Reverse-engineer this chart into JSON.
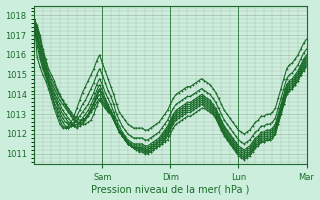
{
  "title": "",
  "xlabel": "Pression niveau de la mer( hPa )",
  "background_color": "#cceedd",
  "grid_color": "#aabbaa",
  "line_color": "#1a6b2a",
  "ylim": [
    1010.5,
    1018.5
  ],
  "yticks": [
    1011,
    1012,
    1013,
    1014,
    1015,
    1016,
    1017,
    1018
  ],
  "day_labels": [
    "Sam",
    "Dim",
    "Lun",
    "Mar"
  ],
  "day_positions": [
    0.25,
    0.5,
    0.75,
    1.0
  ],
  "n_points": 97,
  "series": [
    [
      1017.8,
      1017.5,
      1017.0,
      1016.3,
      1015.8,
      1015.3,
      1015.0,
      1014.7,
      1014.3,
      1014.0,
      1013.7,
      1013.4,
      1013.2,
      1013.0,
      1012.8,
      1012.6,
      1012.5,
      1012.5,
      1012.5,
      1012.6,
      1012.7,
      1013.0,
      1013.4,
      1013.7,
      1013.5,
      1013.3,
      1013.1,
      1013.0,
      1012.8,
      1012.5,
      1012.2,
      1012.0,
      1011.8,
      1011.6,
      1011.4,
      1011.3,
      1011.3,
      1011.2,
      1011.2,
      1011.1,
      1011.1,
      1011.1,
      1011.2,
      1011.3,
      1011.4,
      1011.5,
      1011.6,
      1011.7,
      1012.0,
      1012.3,
      1012.5,
      1012.6,
      1012.7,
      1012.8,
      1012.9,
      1012.9,
      1013.0,
      1013.1,
      1013.2,
      1013.3,
      1013.3,
      1013.2,
      1013.1,
      1013.0,
      1012.8,
      1012.5,
      1012.2,
      1012.0,
      1011.8,
      1011.6,
      1011.4,
      1011.2,
      1011.0,
      1010.9,
      1010.8,
      1010.9,
      1011.0,
      1011.2,
      1011.4,
      1011.5,
      1011.6,
      1011.6,
      1011.7,
      1011.7,
      1011.8,
      1012.0,
      1012.5,
      1013.0,
      1013.5,
      1014.0,
      1014.2,
      1014.3,
      1014.5,
      1014.7,
      1015.0,
      1015.3,
      1015.5
    ],
    [
      1017.8,
      1017.4,
      1016.9,
      1016.2,
      1015.6,
      1015.1,
      1014.8,
      1014.5,
      1014.2,
      1013.9,
      1013.7,
      1013.5,
      1013.3,
      1013.1,
      1012.9,
      1012.8,
      1012.7,
      1012.7,
      1012.8,
      1012.9,
      1013.1,
      1013.3,
      1013.6,
      1013.8,
      1013.6,
      1013.4,
      1013.2,
      1013.0,
      1012.7,
      1012.4,
      1012.1,
      1011.9,
      1011.7,
      1011.5,
      1011.4,
      1011.3,
      1011.2,
      1011.1,
      1011.1,
      1011.0,
      1011.0,
      1011.1,
      1011.2,
      1011.3,
      1011.4,
      1011.5,
      1011.7,
      1011.9,
      1012.2,
      1012.5,
      1012.7,
      1012.8,
      1012.9,
      1013.0,
      1013.1,
      1013.1,
      1013.2,
      1013.3,
      1013.4,
      1013.5,
      1013.4,
      1013.3,
      1013.2,
      1013.0,
      1012.8,
      1012.5,
      1012.2,
      1011.9,
      1011.7,
      1011.5,
      1011.3,
      1011.1,
      1010.9,
      1010.8,
      1010.7,
      1010.8,
      1010.9,
      1011.1,
      1011.3,
      1011.4,
      1011.6,
      1011.6,
      1011.7,
      1011.7,
      1011.8,
      1012.0,
      1012.5,
      1013.0,
      1013.5,
      1014.0,
      1014.2,
      1014.3,
      1014.5,
      1014.7,
      1015.0,
      1015.2,
      1015.4
    ],
    [
      1017.8,
      1017.3,
      1016.8,
      1016.1,
      1015.4,
      1015.0,
      1014.6,
      1014.3,
      1014.0,
      1013.7,
      1013.5,
      1013.3,
      1013.1,
      1012.9,
      1012.7,
      1012.6,
      1012.6,
      1012.7,
      1012.8,
      1013.0,
      1013.2,
      1013.5,
      1013.8,
      1014.0,
      1013.7,
      1013.5,
      1013.2,
      1013.0,
      1012.7,
      1012.4,
      1012.1,
      1011.9,
      1011.7,
      1011.5,
      1011.4,
      1011.3,
      1011.3,
      1011.2,
      1011.2,
      1011.1,
      1011.1,
      1011.2,
      1011.3,
      1011.4,
      1011.5,
      1011.6,
      1011.8,
      1012.0,
      1012.3,
      1012.6,
      1012.8,
      1012.9,
      1013.0,
      1013.1,
      1013.2,
      1013.2,
      1013.3,
      1013.4,
      1013.5,
      1013.6,
      1013.5,
      1013.4,
      1013.3,
      1013.1,
      1012.9,
      1012.6,
      1012.3,
      1012.0,
      1011.8,
      1011.6,
      1011.4,
      1011.2,
      1011.0,
      1010.9,
      1010.8,
      1010.9,
      1011.0,
      1011.2,
      1011.4,
      1011.5,
      1011.7,
      1011.7,
      1011.8,
      1011.8,
      1011.9,
      1012.1,
      1012.6,
      1013.1,
      1013.6,
      1014.1,
      1014.3,
      1014.4,
      1014.6,
      1014.8,
      1015.1,
      1015.4,
      1015.6
    ],
    [
      1017.8,
      1017.2,
      1016.5,
      1015.9,
      1015.3,
      1014.9,
      1014.5,
      1014.1,
      1013.8,
      1013.5,
      1013.2,
      1013.0,
      1012.8,
      1012.6,
      1012.4,
      1012.3,
      1012.4,
      1012.5,
      1012.7,
      1012.9,
      1013.2,
      1013.5,
      1013.9,
      1014.2,
      1013.9,
      1013.6,
      1013.3,
      1013.0,
      1012.7,
      1012.4,
      1012.1,
      1011.9,
      1011.7,
      1011.5,
      1011.4,
      1011.3,
      1011.3,
      1011.3,
      1011.3,
      1011.2,
      1011.2,
      1011.3,
      1011.4,
      1011.5,
      1011.6,
      1011.7,
      1011.9,
      1012.1,
      1012.4,
      1012.7,
      1012.9,
      1013.0,
      1013.1,
      1013.2,
      1013.3,
      1013.3,
      1013.4,
      1013.5,
      1013.6,
      1013.7,
      1013.6,
      1013.5,
      1013.4,
      1013.2,
      1013.0,
      1012.7,
      1012.4,
      1012.1,
      1011.9,
      1011.7,
      1011.5,
      1011.3,
      1011.1,
      1011.0,
      1010.9,
      1011.0,
      1011.1,
      1011.3,
      1011.5,
      1011.6,
      1011.8,
      1011.8,
      1011.9,
      1011.9,
      1012.0,
      1012.2,
      1012.7,
      1013.2,
      1013.7,
      1014.2,
      1014.4,
      1014.5,
      1014.7,
      1014.9,
      1015.2,
      1015.5,
      1015.7
    ],
    [
      1017.8,
      1017.1,
      1016.4,
      1015.7,
      1015.1,
      1014.7,
      1014.3,
      1014.0,
      1013.6,
      1013.3,
      1013.0,
      1012.8,
      1012.6,
      1012.5,
      1012.4,
      1012.4,
      1012.5,
      1012.6,
      1012.8,
      1013.0,
      1013.3,
      1013.6,
      1014.0,
      1014.3,
      1014.0,
      1013.7,
      1013.4,
      1013.1,
      1012.8,
      1012.4,
      1012.1,
      1011.9,
      1011.7,
      1011.5,
      1011.4,
      1011.3,
      1011.3,
      1011.3,
      1011.3,
      1011.2,
      1011.2,
      1011.3,
      1011.4,
      1011.5,
      1011.6,
      1011.8,
      1012.0,
      1012.2,
      1012.5,
      1012.8,
      1013.0,
      1013.1,
      1013.2,
      1013.3,
      1013.4,
      1013.4,
      1013.5,
      1013.6,
      1013.7,
      1013.8,
      1013.7,
      1013.6,
      1013.5,
      1013.3,
      1013.1,
      1012.8,
      1012.5,
      1012.2,
      1012.0,
      1011.8,
      1011.6,
      1011.4,
      1011.2,
      1011.1,
      1011.0,
      1011.1,
      1011.2,
      1011.4,
      1011.6,
      1011.7,
      1011.9,
      1011.9,
      1012.0,
      1012.0,
      1012.1,
      1012.3,
      1012.8,
      1013.3,
      1013.8,
      1014.3,
      1014.5,
      1014.6,
      1014.8,
      1015.0,
      1015.3,
      1015.6,
      1015.8
    ],
    [
      1017.8,
      1017.0,
      1016.2,
      1015.5,
      1015.1,
      1014.7,
      1014.2,
      1013.8,
      1013.5,
      1013.1,
      1012.8,
      1012.6,
      1012.5,
      1012.4,
      1012.4,
      1012.5,
      1012.6,
      1012.8,
      1013.0,
      1013.2,
      1013.5,
      1013.8,
      1014.2,
      1014.5,
      1014.2,
      1013.8,
      1013.5,
      1013.2,
      1012.9,
      1012.5,
      1012.2,
      1012.0,
      1011.8,
      1011.6,
      1011.5,
      1011.4,
      1011.4,
      1011.4,
      1011.4,
      1011.3,
      1011.3,
      1011.4,
      1011.5,
      1011.6,
      1011.7,
      1011.9,
      1012.1,
      1012.3,
      1012.6,
      1012.9,
      1013.1,
      1013.2,
      1013.3,
      1013.4,
      1013.5,
      1013.5,
      1013.6,
      1013.7,
      1013.8,
      1013.9,
      1013.8,
      1013.7,
      1013.6,
      1013.4,
      1013.2,
      1012.9,
      1012.6,
      1012.3,
      1012.1,
      1011.9,
      1011.7,
      1011.5,
      1011.3,
      1011.2,
      1011.1,
      1011.2,
      1011.3,
      1011.5,
      1011.7,
      1011.8,
      1012.0,
      1012.0,
      1012.1,
      1012.1,
      1012.2,
      1012.4,
      1012.9,
      1013.4,
      1013.9,
      1014.4,
      1014.6,
      1014.7,
      1014.9,
      1015.1,
      1015.4,
      1015.7,
      1015.9
    ],
    [
      1017.8,
      1016.8,
      1016.0,
      1015.4,
      1015.0,
      1014.6,
      1014.1,
      1013.6,
      1013.3,
      1012.9,
      1012.6,
      1012.4,
      1012.3,
      1012.4,
      1012.5,
      1012.7,
      1012.9,
      1013.1,
      1013.3,
      1013.5,
      1013.8,
      1014.1,
      1014.5,
      1014.8,
      1014.5,
      1014.1,
      1013.8,
      1013.5,
      1013.1,
      1012.7,
      1012.4,
      1012.1,
      1011.9,
      1011.7,
      1011.6,
      1011.5,
      1011.5,
      1011.5,
      1011.5,
      1011.4,
      1011.4,
      1011.5,
      1011.6,
      1011.7,
      1011.8,
      1012.0,
      1012.2,
      1012.4,
      1012.7,
      1013.0,
      1013.2,
      1013.3,
      1013.4,
      1013.5,
      1013.6,
      1013.6,
      1013.7,
      1013.8,
      1013.9,
      1014.0,
      1013.9,
      1013.8,
      1013.7,
      1013.5,
      1013.3,
      1013.0,
      1012.7,
      1012.4,
      1012.2,
      1012.0,
      1011.8,
      1011.6,
      1011.4,
      1011.3,
      1011.2,
      1011.3,
      1011.4,
      1011.6,
      1011.8,
      1011.9,
      1012.1,
      1012.1,
      1012.2,
      1012.2,
      1012.3,
      1012.5,
      1013.0,
      1013.5,
      1014.0,
      1014.5,
      1014.7,
      1014.8,
      1015.0,
      1015.2,
      1015.5,
      1015.8,
      1016.0
    ],
    [
      1017.8,
      1016.5,
      1015.8,
      1015.3,
      1014.9,
      1014.5,
      1014.0,
      1013.5,
      1013.1,
      1012.7,
      1012.4,
      1012.3,
      1012.3,
      1012.4,
      1012.6,
      1012.9,
      1013.2,
      1013.5,
      1013.7,
      1014.0,
      1014.3,
      1014.6,
      1015.0,
      1015.3,
      1015.0,
      1014.6,
      1014.2,
      1013.9,
      1013.5,
      1013.0,
      1012.7,
      1012.4,
      1012.2,
      1012.0,
      1011.9,
      1011.8,
      1011.8,
      1011.8,
      1011.8,
      1011.7,
      1011.7,
      1011.8,
      1011.9,
      1012.0,
      1012.1,
      1012.3,
      1012.5,
      1012.7,
      1013.0,
      1013.3,
      1013.5,
      1013.6,
      1013.7,
      1013.8,
      1013.9,
      1013.9,
      1014.0,
      1014.1,
      1014.2,
      1014.3,
      1014.2,
      1014.1,
      1014.0,
      1013.8,
      1013.6,
      1013.3,
      1013.0,
      1012.7,
      1012.5,
      1012.3,
      1012.1,
      1011.9,
      1011.7,
      1011.6,
      1011.5,
      1011.6,
      1011.7,
      1011.9,
      1012.1,
      1012.2,
      1012.4,
      1012.4,
      1012.5,
      1012.5,
      1012.6,
      1012.8,
      1013.3,
      1013.8,
      1014.3,
      1014.8,
      1015.0,
      1015.1,
      1015.3,
      1015.5,
      1015.8,
      1016.1,
      1016.3
    ],
    [
      1017.8,
      1015.9,
      1015.4,
      1015.0,
      1014.7,
      1014.3,
      1013.8,
      1013.3,
      1012.9,
      1012.5,
      1012.3,
      1012.3,
      1012.4,
      1012.6,
      1012.9,
      1013.3,
      1013.7,
      1014.1,
      1014.4,
      1014.7,
      1015.0,
      1015.3,
      1015.7,
      1016.0,
      1015.6,
      1015.2,
      1014.8,
      1014.4,
      1014.0,
      1013.5,
      1013.1,
      1012.9,
      1012.7,
      1012.5,
      1012.4,
      1012.3,
      1012.3,
      1012.3,
      1012.3,
      1012.2,
      1012.2,
      1012.3,
      1012.4,
      1012.5,
      1012.6,
      1012.8,
      1013.0,
      1013.2,
      1013.5,
      1013.8,
      1014.0,
      1014.1,
      1014.2,
      1014.3,
      1014.4,
      1014.4,
      1014.5,
      1014.6,
      1014.7,
      1014.8,
      1014.7,
      1014.6,
      1014.5,
      1014.3,
      1014.1,
      1013.8,
      1013.5,
      1013.2,
      1013.0,
      1012.8,
      1012.6,
      1012.4,
      1012.2,
      1012.1,
      1012.0,
      1012.1,
      1012.2,
      1012.4,
      1012.6,
      1012.7,
      1012.9,
      1012.9,
      1013.0,
      1013.0,
      1013.1,
      1013.3,
      1013.8,
      1014.3,
      1014.8,
      1015.3,
      1015.5,
      1015.6,
      1015.8,
      1016.0,
      1016.3,
      1016.6,
      1016.8
    ]
  ]
}
